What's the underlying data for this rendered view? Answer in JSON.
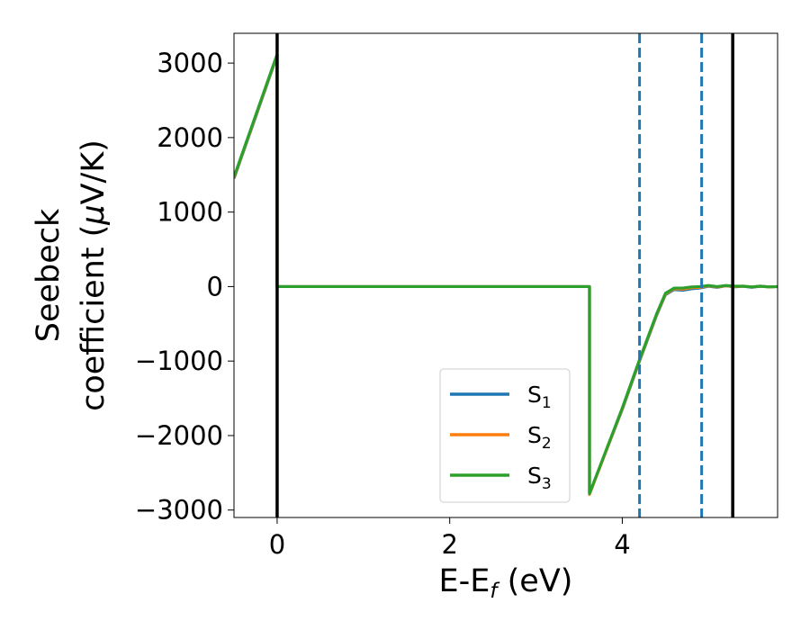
{
  "chart_data": {
    "type": "line",
    "title": "",
    "xlabel": "E-E",
    "xlabel_sub": "f",
    "xlabel_unit": " (eV)",
    "ylabel_line1": "Seebeck",
    "ylabel_line2": "coefficient  (",
    "ylabel_mu": "μ",
    "ylabel_unit": "V/K)",
    "xlim": [
      -0.5,
      5.8
    ],
    "ylim": [
      -3100,
      3400
    ],
    "xticks": [
      0,
      2,
      4
    ],
    "xtick_labels": [
      "0",
      "2",
      "4"
    ],
    "yticks": [
      3000,
      2000,
      1000,
      0,
      -1000,
      -2000,
      -3000
    ],
    "ytick_labels": [
      "3000",
      "2000",
      "1000",
      "0",
      "−1000",
      "−2000",
      "−3000"
    ],
    "grid": false,
    "legend_position": "lower-center-right",
    "series": [
      {
        "name": "S",
        "sub": "1",
        "color": "#1f77b4",
        "x": [
          -0.5,
          0.0,
          0.0,
          3.62,
          3.62,
          4.0,
          4.2,
          4.4,
          4.5,
          4.6,
          4.7,
          4.8,
          4.9,
          5.0,
          5.1,
          5.2,
          5.3,
          5.4,
          5.5,
          5.6,
          5.7,
          5.8
        ],
        "y": [
          1450,
          3100,
          0,
          0,
          -2780,
          -1650,
          -1000,
          -380,
          -110,
          -40,
          -50,
          -30,
          -20,
          5,
          -10,
          10,
          -5,
          5,
          -10,
          5,
          -5,
          0
        ]
      },
      {
        "name": "S",
        "sub": "2",
        "color": "#ff7f0e",
        "x": [
          -0.5,
          0.0,
          0.0,
          3.62,
          3.62,
          4.0,
          4.2,
          4.4,
          4.5,
          4.6,
          4.7,
          4.8,
          4.9,
          5.0,
          5.1,
          5.2,
          5.3,
          5.4,
          5.5,
          5.6,
          5.7,
          5.8
        ],
        "y": [
          1460,
          3110,
          0,
          0,
          -2790,
          -1640,
          -990,
          -370,
          -100,
          -30,
          -35,
          -15,
          -10,
          10,
          -5,
          10,
          0,
          5,
          -5,
          5,
          -5,
          0
        ]
      },
      {
        "name": "S",
        "sub": "3",
        "color": "#2ca02c",
        "x": [
          -0.5,
          0.0,
          0.0,
          3.62,
          3.62,
          4.0,
          4.2,
          4.4,
          4.5,
          4.6,
          4.7,
          4.8,
          4.9,
          5.0,
          5.1,
          5.2,
          5.3,
          5.4,
          5.5,
          5.6,
          5.7,
          5.8
        ],
        "y": [
          1470,
          3120,
          0,
          0,
          -2780,
          -1630,
          -980,
          -360,
          -90,
          -20,
          -20,
          -5,
          0,
          15,
          0,
          15,
          5,
          5,
          -5,
          5,
          -5,
          0
        ]
      }
    ],
    "vlines": [
      {
        "x": 0.0,
        "style": "solid",
        "color": "#000000"
      },
      {
        "x": 5.28,
        "style": "solid",
        "color": "#000000"
      },
      {
        "x": 4.2,
        "style": "dashed",
        "color": "#1f77b4"
      },
      {
        "x": 4.92,
        "style": "dashed",
        "color": "#1f77b4"
      }
    ]
  }
}
